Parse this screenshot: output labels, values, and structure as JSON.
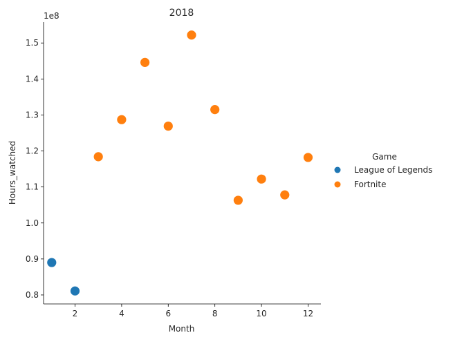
{
  "chart_data": {
    "type": "scatter",
    "title": "2018",
    "xlabel": "Month",
    "ylabel": "Hours_watched",
    "y_scale_label": "1e8",
    "xlim": [
      0.65,
      12.55
    ],
    "ylim": [
      0.775,
      1.558
    ],
    "x_ticks": [
      2,
      4,
      6,
      8,
      10,
      12
    ],
    "x_tick_labels": [
      "2",
      "4",
      "6",
      "8",
      "10",
      "12"
    ],
    "y_ticks": [
      0.8,
      0.9,
      1.0,
      1.1,
      1.2,
      1.3,
      1.4,
      1.5
    ],
    "y_tick_labels": [
      "0.8",
      "0.9",
      "1.0",
      "1.1",
      "1.2",
      "1.3",
      "1.4",
      "1.5"
    ],
    "grid": false,
    "legend_placement": "right",
    "legend_title": "Game",
    "series": [
      {
        "name": "League of Legends",
        "color": "#1f77b4",
        "x": [
          1,
          2
        ],
        "y": [
          0.89,
          0.811
        ]
      },
      {
        "name": "Fortnite",
        "color": "#ff7f0e",
        "x": [
          3,
          4,
          5,
          6,
          7,
          8,
          9,
          10,
          11,
          12
        ],
        "y": [
          1.184,
          1.287,
          1.446,
          1.269,
          1.522,
          1.315,
          1.063,
          1.122,
          1.078,
          1.182
        ]
      }
    ]
  }
}
